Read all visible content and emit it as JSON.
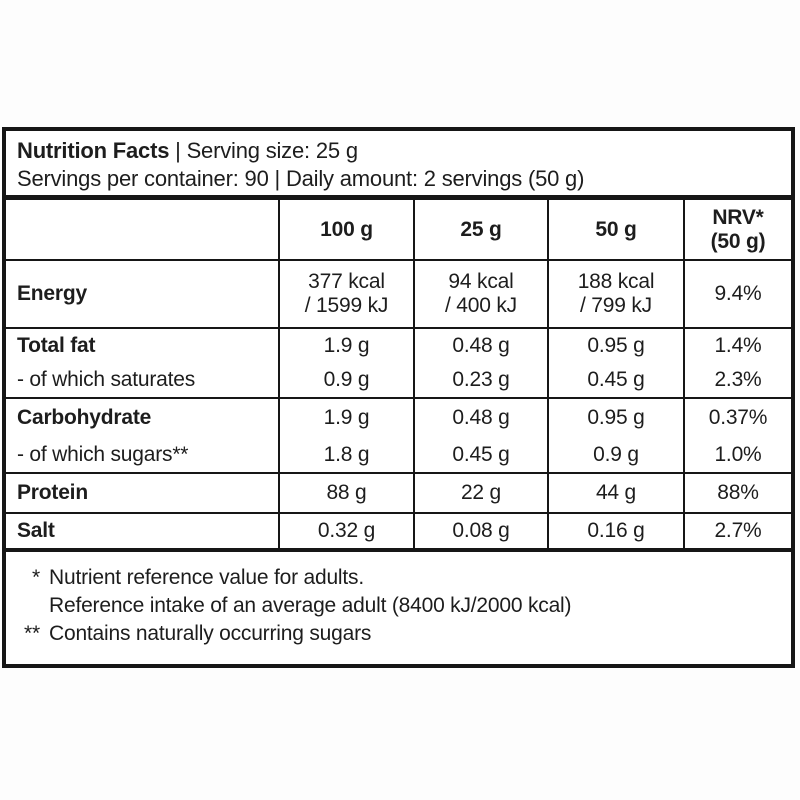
{
  "label": {
    "header": {
      "title": "Nutrition Facts",
      "title_suffix": "| Serving size: 25 g",
      "line2": "Servings per container: 90 | Daily amount: 2 servings (50 g)"
    },
    "table": {
      "column_headers": [
        "",
        "100 g",
        "25 g",
        "50 g",
        "NRV*\n(50 g)"
      ],
      "rows": [
        {
          "label": "Energy",
          "values": [
            "377 kcal\n/ 1599 kJ",
            "94 kcal\n/ 400 kJ",
            "188 kcal\n/ 799 kJ",
            "9.4%"
          ]
        },
        {
          "label": "Total fat",
          "values": [
            "1.9 g",
            "0.48 g",
            "0.95 g",
            "1.4%"
          ]
        },
        {
          "label": "- of which saturates",
          "values": [
            "0.9 g",
            "0.23 g",
            "0.45 g",
            "2.3%"
          ]
        },
        {
          "label": "Carbohydrate",
          "values": [
            "1.9 g",
            "0.48 g",
            "0.95 g",
            "0.37%"
          ]
        },
        {
          "label": "- of which sugars**",
          "values": [
            "1.8 g",
            "0.45 g",
            "0.9 g",
            "1.0%"
          ]
        },
        {
          "label": "Protein",
          "values": [
            "88 g",
            "22 g",
            "44 g",
            "88%"
          ]
        },
        {
          "label": "Salt",
          "values": [
            "0.32 g",
            "0.08 g",
            "0.16 g",
            "2.7%"
          ]
        }
      ]
    },
    "footnotes": [
      {
        "marker": "*",
        "text": "Nutrient reference value for adults."
      },
      {
        "marker": "",
        "text": "Reference intake of an average adult (8400 kJ/2000 kcal)"
      },
      {
        "marker": "**",
        "text": "Contains naturally occurring sugars"
      }
    ]
  }
}
